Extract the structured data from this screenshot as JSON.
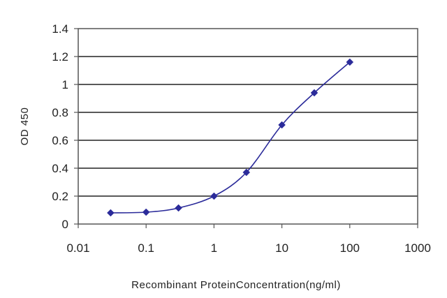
{
  "chart_data": {
    "type": "line",
    "xlabel": "Recombinant ProteinConcentration(ng/ml)",
    "ylabel": "OD 450",
    "x_scale": "log",
    "xlim": [
      0.01,
      1000
    ],
    "ylim": [
      0,
      1.4
    ],
    "x_ticks": [
      "0.01",
      "0.1",
      "1",
      "10",
      "100",
      "1000"
    ],
    "y_ticks": [
      "0",
      "0.2",
      "0.4",
      "0.6",
      "0.8",
      "1",
      "1.2",
      "1.4"
    ],
    "grid": "horizontal",
    "legend": "none",
    "series": [
      {
        "x": [
          0.03,
          0.1,
          0.3,
          1,
          3,
          10,
          30,
          100
        ],
        "y": [
          0.08,
          0.085,
          0.115,
          0.2,
          0.37,
          0.71,
          0.94,
          1.16
        ],
        "color": "#2b2b9a"
      }
    ]
  }
}
